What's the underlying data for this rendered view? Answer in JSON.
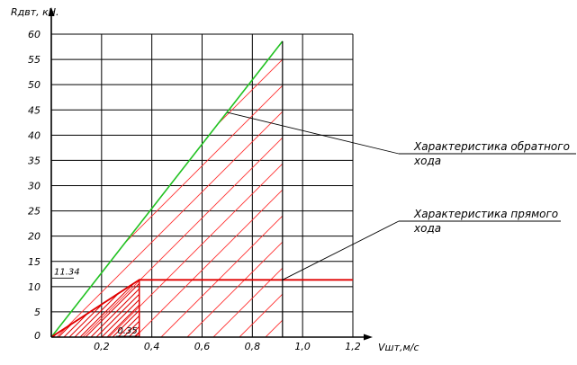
{
  "chart_data": {
    "type": "line",
    "ylabel": "Rдвт, кН.",
    "xlabel": "Vшт,м/с",
    "x_ticks": [
      "0,2",
      "0,4",
      "0,6",
      "0,8",
      "1,0",
      "1,2"
    ],
    "x_tick_values": [
      0.2,
      0.4,
      0.6,
      0.8,
      1.0,
      1.2
    ],
    "y_ticks": [
      "0",
      "5",
      "10",
      "15",
      "20",
      "25",
      "30",
      "35",
      "40",
      "45",
      "50",
      "55",
      "60"
    ],
    "y_tick_values": [
      0,
      5,
      10,
      15,
      20,
      25,
      30,
      35,
      40,
      45,
      50,
      55,
      60
    ],
    "xlim": [
      0,
      1.2
    ],
    "ylim": [
      0,
      60
    ],
    "grid": true,
    "series": [
      {
        "x": [
          0,
          0.92
        ],
        "y": [
          0,
          58.6
        ],
        "color": "#22c222"
      },
      {
        "x": [
          0,
          0.35,
          1.2
        ],
        "y": [
          0,
          11.34,
          11.34
        ],
        "color": "#e00000"
      }
    ],
    "regions": [
      {
        "kind": "hatched",
        "x": [
          0,
          0.92,
          0.92
        ],
        "y": [
          0,
          58.6,
          0
        ],
        "color": "#ff3030"
      },
      {
        "kind": "hatched-dense",
        "x": [
          0,
          0.35,
          0.35
        ],
        "y": [
          0,
          11.34,
          0
        ],
        "color": "#e00000"
      }
    ],
    "marker_lines": [
      {
        "axis": "x",
        "value": 0.92,
        "y_to": 58.6
      }
    ],
    "annotations": [
      {
        "text": "11.34",
        "x": 0,
        "y": 11.34
      },
      {
        "text": "0.35",
        "x": 0.35,
        "y": 0
      }
    ],
    "callouts": [
      {
        "line1": "Характеристика обратного",
        "line2": "хода",
        "target_x": 0.7,
        "target_y": 44.5
      },
      {
        "line1": "Характеристика прямого",
        "line2": "хода",
        "target_x": 0.92,
        "target_y": 11.34
      }
    ]
  }
}
